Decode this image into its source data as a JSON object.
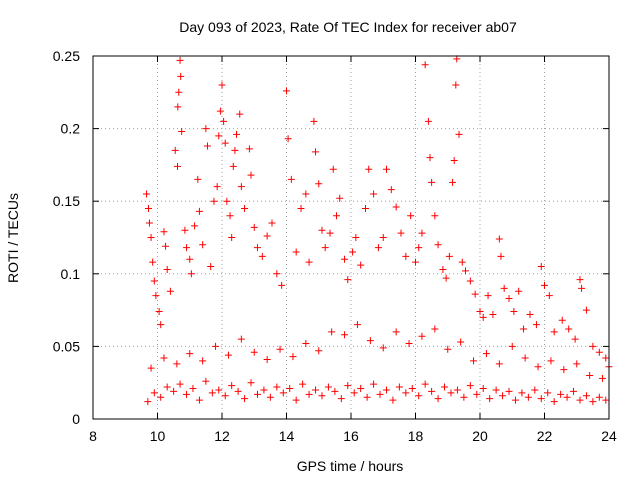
{
  "chart_data": {
    "type": "scatter",
    "title": "Day 093 of 2023, Rate Of TEC Index for receiver ab07",
    "xlabel": "GPS time / hours",
    "ylabel": "ROTI / TECUs",
    "xlim": [
      8,
      24
    ],
    "ylim": [
      0,
      0.25
    ],
    "xticks": [
      "8",
      "10",
      "12",
      "14",
      "16",
      "18",
      "20",
      "22",
      "24"
    ],
    "yticks": [
      "0",
      "0.05",
      "0.1",
      "0.15",
      "0.2",
      "0.25"
    ],
    "grid": true,
    "legend": "none",
    "marker": "plus",
    "color": "#ff0000",
    "points": [
      [
        9.66,
        0.155
      ],
      [
        9.72,
        0.145
      ],
      [
        9.75,
        0.135
      ],
      [
        9.8,
        0.125
      ],
      [
        9.85,
        0.108
      ],
      [
        9.9,
        0.095
      ],
      [
        9.95,
        0.085
      ],
      [
        10.05,
        0.074
      ],
      [
        10.1,
        0.065
      ],
      [
        10.2,
        0.129
      ],
      [
        10.25,
        0.119
      ],
      [
        10.3,
        0.103
      ],
      [
        10.4,
        0.088
      ],
      [
        10.55,
        0.185
      ],
      [
        10.62,
        0.174
      ],
      [
        10.63,
        0.215
      ],
      [
        10.66,
        0.225
      ],
      [
        10.7,
        0.247
      ],
      [
        10.72,
        0.236
      ],
      [
        10.75,
        0.198
      ],
      [
        10.85,
        0.13
      ],
      [
        10.9,
        0.118
      ],
      [
        11.0,
        0.11
      ],
      [
        11.05,
        0.1
      ],
      [
        11.15,
        0.133
      ],
      [
        11.25,
        0.165
      ],
      [
        11.3,
        0.143
      ],
      [
        11.4,
        0.12
      ],
      [
        11.5,
        0.2
      ],
      [
        11.55,
        0.188
      ],
      [
        11.65,
        0.105
      ],
      [
        11.75,
        0.15
      ],
      [
        11.85,
        0.16
      ],
      [
        11.9,
        0.195
      ],
      [
        11.95,
        0.212
      ],
      [
        12.0,
        0.23
      ],
      [
        12.05,
        0.205
      ],
      [
        12.1,
        0.19
      ],
      [
        12.15,
        0.15
      ],
      [
        12.25,
        0.14
      ],
      [
        12.3,
        0.125
      ],
      [
        12.35,
        0.174
      ],
      [
        12.4,
        0.185
      ],
      [
        12.45,
        0.196
      ],
      [
        12.55,
        0.21
      ],
      [
        12.6,
        0.16
      ],
      [
        12.7,
        0.145
      ],
      [
        12.85,
        0.186
      ],
      [
        12.9,
        0.168
      ],
      [
        13.0,
        0.132
      ],
      [
        13.1,
        0.118
      ],
      [
        13.25,
        0.112
      ],
      [
        13.4,
        0.126
      ],
      [
        13.55,
        0.135
      ],
      [
        13.7,
        0.1
      ],
      [
        13.85,
        0.092
      ],
      [
        14.0,
        0.226
      ],
      [
        14.05,
        0.193
      ],
      [
        14.15,
        0.165
      ],
      [
        14.3,
        0.115
      ],
      [
        14.45,
        0.145
      ],
      [
        14.6,
        0.155
      ],
      [
        14.7,
        0.108
      ],
      [
        14.85,
        0.205
      ],
      [
        14.9,
        0.184
      ],
      [
        15.0,
        0.162
      ],
      [
        15.1,
        0.13
      ],
      [
        15.2,
        0.118
      ],
      [
        15.35,
        0.128
      ],
      [
        15.45,
        0.172
      ],
      [
        15.55,
        0.14
      ],
      [
        15.65,
        0.152
      ],
      [
        15.8,
        0.11
      ],
      [
        15.9,
        0.096
      ],
      [
        16.05,
        0.115
      ],
      [
        16.15,
        0.125
      ],
      [
        16.3,
        0.106
      ],
      [
        16.45,
        0.145
      ],
      [
        16.55,
        0.172
      ],
      [
        16.7,
        0.155
      ],
      [
        16.85,
        0.118
      ],
      [
        17.0,
        0.125
      ],
      [
        17.1,
        0.172
      ],
      [
        17.25,
        0.158
      ],
      [
        17.4,
        0.146
      ],
      [
        17.55,
        0.128
      ],
      [
        17.7,
        0.112
      ],
      [
        17.85,
        0.14
      ],
      [
        18.0,
        0.108
      ],
      [
        18.1,
        0.118
      ],
      [
        18.2,
        0.128
      ],
      [
        18.3,
        0.244
      ],
      [
        18.4,
        0.205
      ],
      [
        18.45,
        0.18
      ],
      [
        18.5,
        0.163
      ],
      [
        18.6,
        0.14
      ],
      [
        18.7,
        0.12
      ],
      [
        18.85,
        0.103
      ],
      [
        18.95,
        0.097
      ],
      [
        19.05,
        0.112
      ],
      [
        19.15,
        0.163
      ],
      [
        19.2,
        0.178
      ],
      [
        19.25,
        0.23
      ],
      [
        19.28,
        0.248
      ],
      [
        19.35,
        0.196
      ],
      [
        19.45,
        0.108
      ],
      [
        19.55,
        0.102
      ],
      [
        19.7,
        0.095
      ],
      [
        19.85,
        0.086
      ],
      [
        20.0,
        0.074
      ],
      [
        20.1,
        0.07
      ],
      [
        20.25,
        0.085
      ],
      [
        20.4,
        0.072
      ],
      [
        20.6,
        0.124
      ],
      [
        20.65,
        0.112
      ],
      [
        20.75,
        0.09
      ],
      [
        20.9,
        0.083
      ],
      [
        21.05,
        0.074
      ],
      [
        21.2,
        0.088
      ],
      [
        21.35,
        0.062
      ],
      [
        21.55,
        0.072
      ],
      [
        21.75,
        0.065
      ],
      [
        21.9,
        0.105
      ],
      [
        22.0,
        0.092
      ],
      [
        22.15,
        0.085
      ],
      [
        22.3,
        0.06
      ],
      [
        22.55,
        0.068
      ],
      [
        22.75,
        0.062
      ],
      [
        22.95,
        0.055
      ],
      [
        23.1,
        0.096
      ],
      [
        23.15,
        0.09
      ],
      [
        23.3,
        0.075
      ],
      [
        23.5,
        0.05
      ],
      [
        23.7,
        0.046
      ],
      [
        23.9,
        0.042
      ],
      [
        24.0,
        0.036
      ],
      [
        9.7,
        0.012
      ],
      [
        9.9,
        0.018
      ],
      [
        10.1,
        0.015
      ],
      [
        10.3,
        0.022
      ],
      [
        10.5,
        0.019
      ],
      [
        10.7,
        0.024
      ],
      [
        10.9,
        0.017
      ],
      [
        11.1,
        0.021
      ],
      [
        11.3,
        0.013
      ],
      [
        11.5,
        0.026
      ],
      [
        11.7,
        0.018
      ],
      [
        11.9,
        0.02
      ],
      [
        12.1,
        0.016
      ],
      [
        12.3,
        0.023
      ],
      [
        12.5,
        0.019
      ],
      [
        12.7,
        0.014
      ],
      [
        12.9,
        0.025
      ],
      [
        13.1,
        0.017
      ],
      [
        13.3,
        0.02
      ],
      [
        13.5,
        0.015
      ],
      [
        13.7,
        0.022
      ],
      [
        13.9,
        0.018
      ],
      [
        14.1,
        0.021
      ],
      [
        14.3,
        0.013
      ],
      [
        14.5,
        0.024
      ],
      [
        14.7,
        0.017
      ],
      [
        14.9,
        0.02
      ],
      [
        15.1,
        0.016
      ],
      [
        15.3,
        0.022
      ],
      [
        15.5,
        0.019
      ],
      [
        15.7,
        0.014
      ],
      [
        15.9,
        0.023
      ],
      [
        16.1,
        0.018
      ],
      [
        16.3,
        0.021
      ],
      [
        16.5,
        0.015
      ],
      [
        16.7,
        0.024
      ],
      [
        16.9,
        0.017
      ],
      [
        17.1,
        0.02
      ],
      [
        17.3,
        0.013
      ],
      [
        17.5,
        0.022
      ],
      [
        17.7,
        0.018
      ],
      [
        17.9,
        0.021
      ],
      [
        18.1,
        0.016
      ],
      [
        18.3,
        0.024
      ],
      [
        18.5,
        0.019
      ],
      [
        18.7,
        0.014
      ],
      [
        18.9,
        0.022
      ],
      [
        19.1,
        0.018
      ],
      [
        19.3,
        0.02
      ],
      [
        19.5,
        0.015
      ],
      [
        19.7,
        0.023
      ],
      [
        19.9,
        0.017
      ],
      [
        20.1,
        0.021
      ],
      [
        20.3,
        0.014
      ],
      [
        20.5,
        0.02
      ],
      [
        20.7,
        0.016
      ],
      [
        20.9,
        0.019
      ],
      [
        21.1,
        0.013
      ],
      [
        21.3,
        0.018
      ],
      [
        21.5,
        0.015
      ],
      [
        21.7,
        0.02
      ],
      [
        21.9,
        0.014
      ],
      [
        22.1,
        0.018
      ],
      [
        22.3,
        0.012
      ],
      [
        22.5,
        0.017
      ],
      [
        22.7,
        0.015
      ],
      [
        22.9,
        0.019
      ],
      [
        23.1,
        0.013
      ],
      [
        23.3,
        0.016
      ],
      [
        23.5,
        0.012
      ],
      [
        23.7,
        0.015
      ],
      [
        23.9,
        0.013
      ],
      [
        9.8,
        0.035
      ],
      [
        10.2,
        0.042
      ],
      [
        10.6,
        0.038
      ],
      [
        11.0,
        0.045
      ],
      [
        11.4,
        0.04
      ],
      [
        11.8,
        0.05
      ],
      [
        12.2,
        0.044
      ],
      [
        12.6,
        0.055
      ],
      [
        13.0,
        0.046
      ],
      [
        13.4,
        0.041
      ],
      [
        13.8,
        0.048
      ],
      [
        14.2,
        0.043
      ],
      [
        14.6,
        0.052
      ],
      [
        15.0,
        0.047
      ],
      [
        15.4,
        0.06
      ],
      [
        15.8,
        0.058
      ],
      [
        16.2,
        0.065
      ],
      [
        16.6,
        0.054
      ],
      [
        17.0,
        0.049
      ],
      [
        17.4,
        0.06
      ],
      [
        17.8,
        0.052
      ],
      [
        18.2,
        0.057
      ],
      [
        18.6,
        0.062
      ],
      [
        19.0,
        0.048
      ],
      [
        19.4,
        0.053
      ],
      [
        19.8,
        0.04
      ],
      [
        20.2,
        0.045
      ],
      [
        20.6,
        0.038
      ],
      [
        21.0,
        0.05
      ],
      [
        21.4,
        0.042
      ],
      [
        21.8,
        0.036
      ],
      [
        22.2,
        0.04
      ],
      [
        22.6,
        0.034
      ],
      [
        23.0,
        0.038
      ],
      [
        23.4,
        0.03
      ],
      [
        23.8,
        0.028
      ]
    ]
  }
}
